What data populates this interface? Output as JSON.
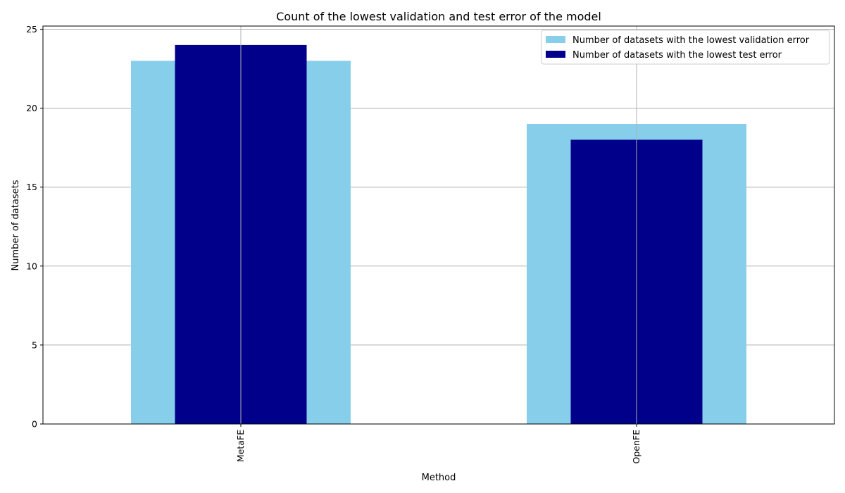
{
  "chart_data": {
    "type": "bar",
    "title": "Count of the lowest validation and test error of the model",
    "xlabel": "Method",
    "ylabel": "Number of datasets",
    "categories": [
      "MetaFE",
      "OpenFE"
    ],
    "series": [
      {
        "name": "Number of datasets with the lowest validation error",
        "values": [
          23,
          19
        ],
        "color": "#87CEEB"
      },
      {
        "name": "Number of datasets with the lowest test error",
        "values": [
          24,
          18
        ],
        "color": "#00008B"
      }
    ],
    "ylim": [
      0,
      25.2
    ],
    "yticks": [
      0,
      5,
      10,
      15,
      20,
      25
    ],
    "grid": true,
    "legend_position": "top-right"
  }
}
